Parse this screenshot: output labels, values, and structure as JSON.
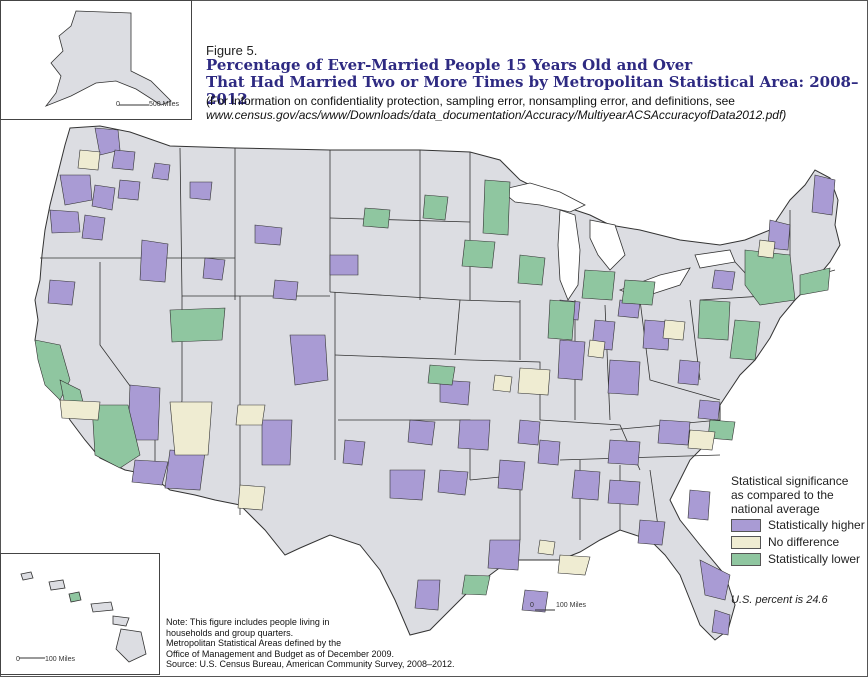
{
  "figure_label": "Figure 5.",
  "title_line1": "Percentage of Ever-Married People 15 Years Old and Over",
  "title_line2": "That Had Married Two or More Times by Metropolitan Statistical Area: 2008–2012",
  "note_line1": "(For information on confidentiality protection, sampling error, nonsampling error, and definitions, see",
  "note_url": "www.census.gov/acs/www/Downloads/data_documentation/Accuracy/MultiyearACSAccuracyofData2012.pdf)",
  "legend": {
    "title_line1": "Statistical significance",
    "title_line2": "as compared to the",
    "title_line3": "national average",
    "items": [
      {
        "label": "Statistically higher",
        "color": "#a99bd4"
      },
      {
        "label": "No difference",
        "color": "#efecd2"
      },
      {
        "label": "Statistically lower",
        "color": "#8fc6a0"
      }
    ]
  },
  "us_percent": "U.S. percent is 24.6",
  "footnote": {
    "line1": "Note: This figure includes people living in",
    "line2": "households and group quarters.",
    "line3": "Metropolitan Statistical Areas defined by the",
    "line4": "Office of Management and Budget as of December 2009.",
    "line5": "Source: U.S. Census Bureau, American Community Survey, 2008–2012."
  },
  "scales": {
    "alaska_zero": "0",
    "alaska_label": "500 Miles",
    "hawaii_zero": "0",
    "hawaii_label": "100 Miles",
    "main_zero": "0",
    "main_label": "100 Miles"
  },
  "colors": {
    "land": "#dcdde2",
    "higher": "#a99bd4",
    "nodiff": "#efecd2",
    "lower": "#8fc6a0",
    "border": "#333333",
    "title": "#2e2a82"
  }
}
